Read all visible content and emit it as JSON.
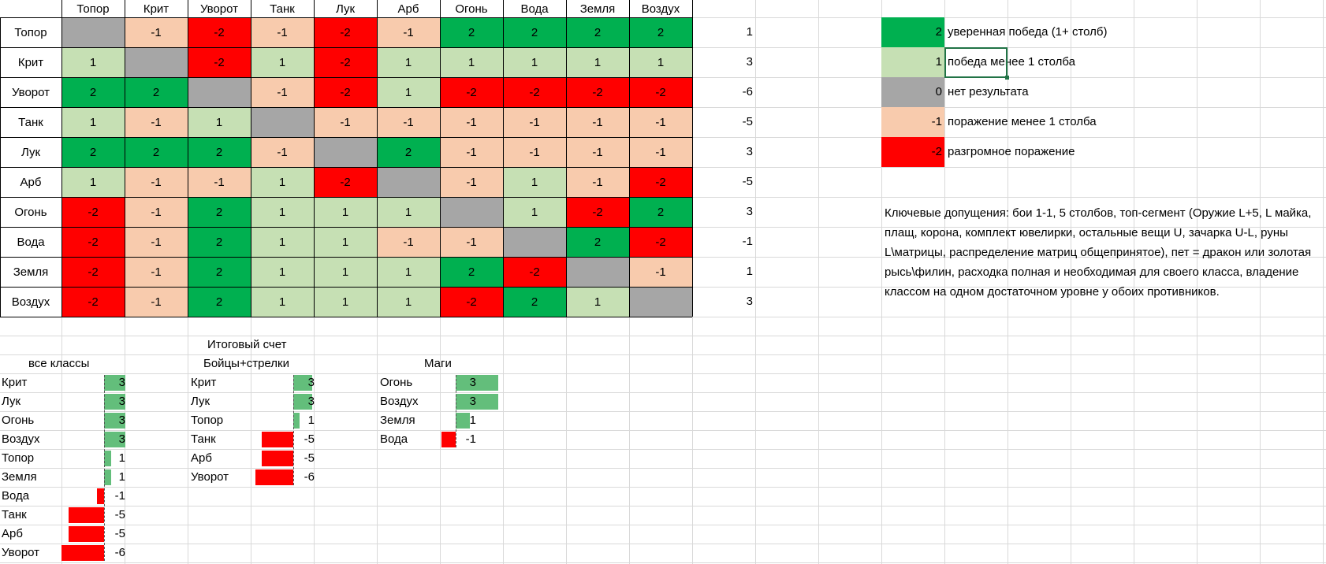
{
  "matrix": {
    "classes": [
      "Топор",
      "Крит",
      "Уворот",
      "Танк",
      "Лук",
      "Арб",
      "Огонь",
      "Вода",
      "Земля",
      "Воздух"
    ],
    "rows": [
      [
        0,
        -1,
        -2,
        -1,
        -2,
        -1,
        2,
        2,
        2,
        2
      ],
      [
        1,
        0,
        -2,
        1,
        -2,
        1,
        1,
        1,
        1,
        1
      ],
      [
        2,
        2,
        0,
        -1,
        -2,
        1,
        -2,
        -2,
        -2,
        -2
      ],
      [
        1,
        -1,
        1,
        0,
        -1,
        -1,
        -1,
        -1,
        -1,
        -1
      ],
      [
        2,
        2,
        2,
        -1,
        0,
        2,
        -1,
        -1,
        -1,
        -1
      ],
      [
        1,
        -1,
        -1,
        1,
        -2,
        0,
        -1,
        1,
        -1,
        -2
      ],
      [
        -2,
        -1,
        2,
        1,
        1,
        1,
        0,
        1,
        -2,
        2
      ],
      [
        -2,
        -1,
        2,
        1,
        1,
        -1,
        -1,
        0,
        2,
        -2
      ],
      [
        -2,
        -1,
        2,
        1,
        1,
        1,
        2,
        -2,
        0,
        -1
      ],
      [
        -2,
        -1,
        2,
        1,
        1,
        1,
        -2,
        2,
        1,
        0
      ]
    ],
    "totals": [
      "1",
      "3",
      "-6",
      "-5",
      "3",
      "-5",
      "3",
      "-1",
      "1",
      "3"
    ]
  },
  "colors": {
    "2": "#00b050",
    "1": "#c6e0b4",
    "0": "#a6a6a6",
    "-1": "#f8cbad",
    "-2": "#ff0000",
    "bar_positive": "#63be7b",
    "bar_negative": "#ff0000"
  },
  "legend": [
    {
      "value": "2",
      "label": "уверенная победа (1+ столб)",
      "level": 2
    },
    {
      "value": "1",
      "label": "победа менее 1 столба",
      "level": 1
    },
    {
      "value": "0",
      "label": "нет результата",
      "level": 0
    },
    {
      "value": "-1",
      "label": "поражение менее 1 столба",
      "level": -1
    },
    {
      "value": "-2",
      "label": "разгромное поражение",
      "level": -2
    }
  ],
  "assumptions": "Ключевые допущения: бои 1-1, 5 столбов, топ-сегмент (Оружие L+5, L майка, плащ, корона, комплект ювелирки, остальные вещи U, зачарка U-L, руны L\\матрицы, распределение матриц общепринятое), пет = дракон или золотая рысь\\филин, расходка полная и необходимая для своего класса, владение классом на одном достаточном уровне у обоих противников.",
  "summary": {
    "title": "Итоговый счет",
    "groups": [
      {
        "header": "все классы",
        "items": [
          {
            "name": "Крит",
            "value": "3"
          },
          {
            "name": "Лук",
            "value": "3"
          },
          {
            "name": "Огонь",
            "value": "3"
          },
          {
            "name": "Воздух",
            "value": "3"
          },
          {
            "name": "Топор",
            "value": "1"
          },
          {
            "name": "Земля",
            "value": "1"
          },
          {
            "name": "Вода",
            "value": "-1"
          },
          {
            "name": "Танк",
            "value": "-5"
          },
          {
            "name": "Арб",
            "value": "-5"
          },
          {
            "name": "Уворот",
            "value": "-6"
          }
        ]
      },
      {
        "header": "Бойцы+стрелки",
        "items": [
          {
            "name": "Крит",
            "value": "3"
          },
          {
            "name": "Лук",
            "value": "3"
          },
          {
            "name": "Топор",
            "value": "1"
          },
          {
            "name": "Танк",
            "value": "-5"
          },
          {
            "name": "Арб",
            "value": "-5"
          },
          {
            "name": "Уворот",
            "value": "-6"
          }
        ]
      },
      {
        "header": "Маги",
        "items": [
          {
            "name": "Огонь",
            "value": "3"
          },
          {
            "name": "Воздух",
            "value": "3"
          },
          {
            "name": "Земля",
            "value": "1"
          },
          {
            "name": "Вода",
            "value": "-1"
          }
        ]
      }
    ]
  }
}
